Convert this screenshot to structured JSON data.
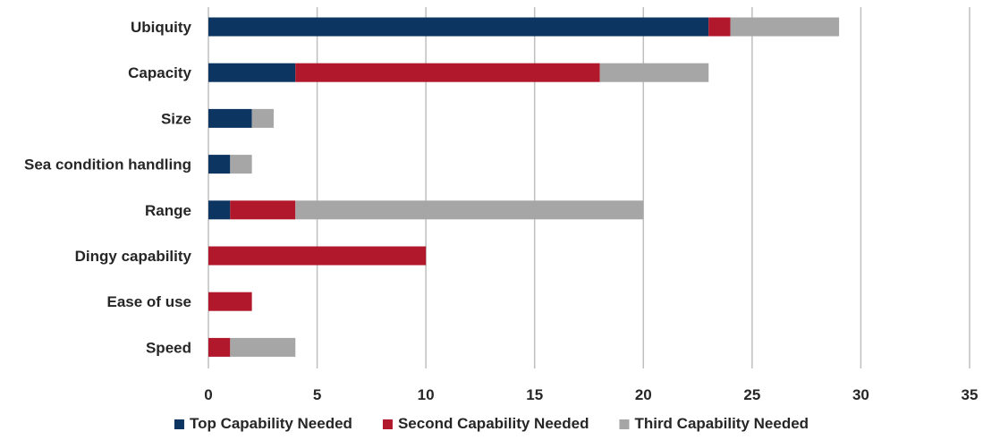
{
  "chart_data": {
    "type": "bar",
    "orientation": "horizontal",
    "stacked": true,
    "categories": [
      "Ubiquity",
      "Capacity",
      "Size",
      "Sea condition handling",
      "Range",
      "Dingy capability",
      "Ease of use",
      "Speed"
    ],
    "series": [
      {
        "name": "Top Capability Needed",
        "color": "#0d3561",
        "values": [
          23,
          4,
          2,
          1,
          1,
          0,
          0,
          0
        ]
      },
      {
        "name": "Second Capability Needed",
        "color": "#b2182b",
        "values": [
          1,
          14,
          0,
          0,
          3,
          10,
          2,
          1
        ]
      },
      {
        "name": "Third Capability Needed",
        "color": "#a6a6a6",
        "values": [
          5,
          5,
          1,
          1,
          16,
          0,
          0,
          3
        ]
      }
    ],
    "xlim": [
      0,
      35
    ],
    "xticks": [
      0,
      5,
      10,
      15,
      20,
      25,
      30,
      35
    ],
    "title": "",
    "xlabel": "",
    "ylabel": "",
    "grid": "vertical",
    "legend_position": "bottom"
  }
}
